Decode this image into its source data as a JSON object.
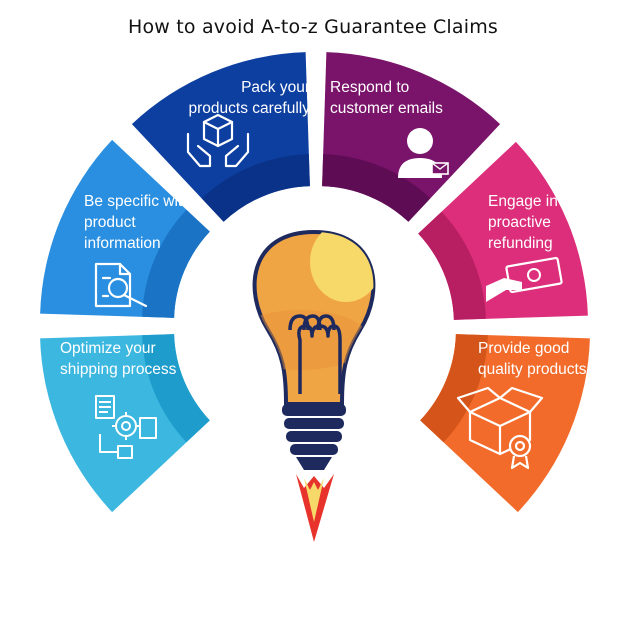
{
  "title": "How to avoid A-to-z Guarantee Claims",
  "colors": {
    "pack": "#0d3fa0",
    "respond": "#7a136a",
    "engage": "#dc2e7a",
    "provide": "#f26b2a",
    "optimize": "#3bb7e0",
    "specific": "#2a8fe0",
    "bulb_glass": "#f0a544",
    "bulb_highlight": "#f7d96a",
    "bulb_base": "#1e2a5e",
    "flame": "#e7332b"
  },
  "segments": [
    {
      "id": "pack",
      "lines": [
        "Pack your",
        "products carefully"
      ],
      "icon": "box-hands-icon"
    },
    {
      "id": "respond",
      "lines": [
        "Respond to",
        "customer emails"
      ],
      "icon": "user-email-icon"
    },
    {
      "id": "engage",
      "lines": [
        "Engage in",
        "proactive",
        "refunding"
      ],
      "icon": "hand-money-icon"
    },
    {
      "id": "provide",
      "lines": [
        "Provide good",
        "quality products"
      ],
      "icon": "box-badge-icon"
    },
    {
      "id": "optimize",
      "lines": [
        "Optimize your",
        "shipping process"
      ],
      "icon": "process-gear-icon"
    },
    {
      "id": "specific",
      "lines": [
        "Be specific with",
        "product",
        "information"
      ],
      "icon": "document-search-icon"
    }
  ]
}
